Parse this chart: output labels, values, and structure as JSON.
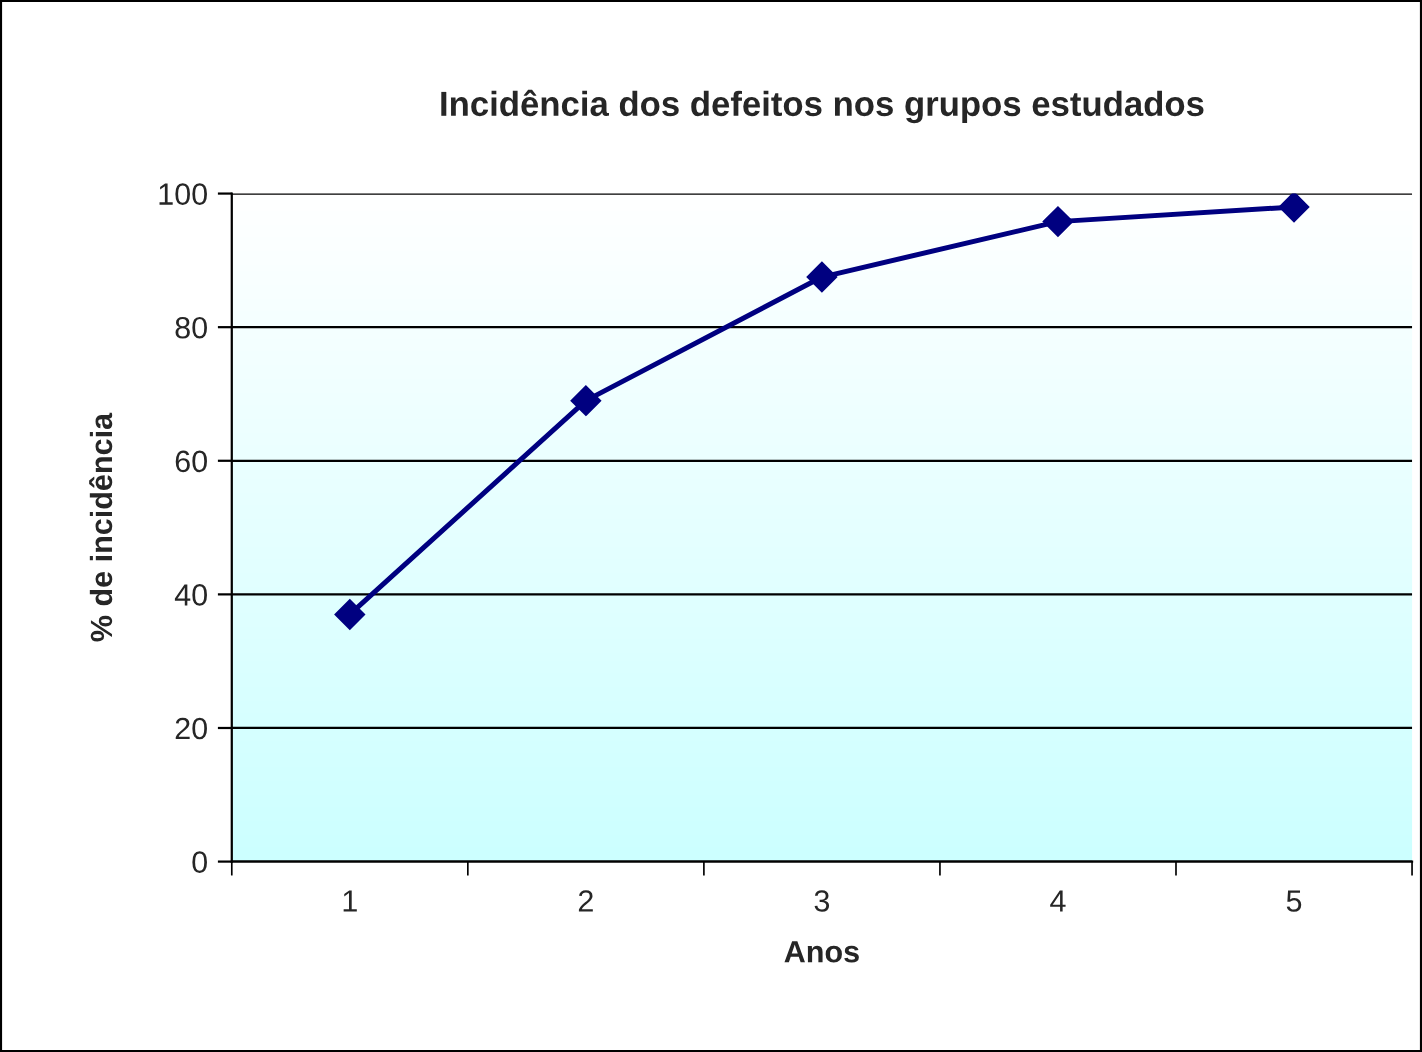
{
  "chart_data": {
    "type": "line",
    "title": "Incidência dos defeitos nos grupos estudados",
    "xlabel": "Anos",
    "ylabel": "% de incidência",
    "categories": [
      "1",
      "2",
      "3",
      "4",
      "5"
    ],
    "series": [
      {
        "color": "#000080",
        "values": [
          37,
          69,
          87.5,
          95.8,
          98
        ]
      }
    ],
    "ylim": [
      0,
      100
    ],
    "yticks": [
      0,
      20,
      40,
      60,
      80,
      100
    ],
    "grid": "y",
    "marker": "diamond",
    "line_style": "solid",
    "legend": false
  }
}
